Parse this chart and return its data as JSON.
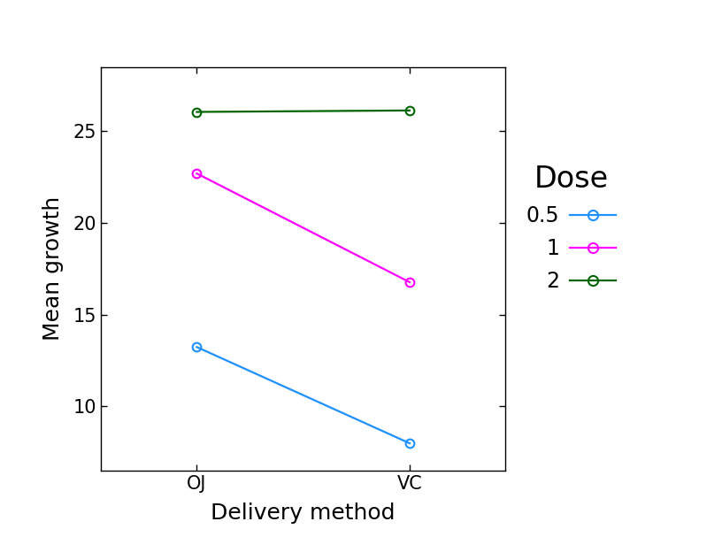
{
  "title": "",
  "xlabel": "Delivery method",
  "ylabel": "Mean growth",
  "x_labels": [
    "OJ",
    "VC"
  ],
  "x_positions": [
    0,
    1
  ],
  "series": [
    {
      "label": "0.5",
      "color": "#1E90FF",
      "oj": 13.23,
      "vc": 7.98
    },
    {
      "label": "1",
      "color": "#FF00FF",
      "oj": 22.7,
      "vc": 16.77
    },
    {
      "label": "2",
      "color": "#006400",
      "oj": 26.06,
      "vc": 26.14
    }
  ],
  "ylim": [
    6.5,
    28.5
  ],
  "yticks": [
    10,
    15,
    20,
    25
  ],
  "legend_title": "Dose",
  "legend_title_fontsize": 24,
  "legend_fontsize": 17,
  "axis_label_fontsize": 18,
  "tick_fontsize": 15,
  "background_color": "#ffffff",
  "marker": "o",
  "marker_size": 7,
  "linewidth": 1.6
}
